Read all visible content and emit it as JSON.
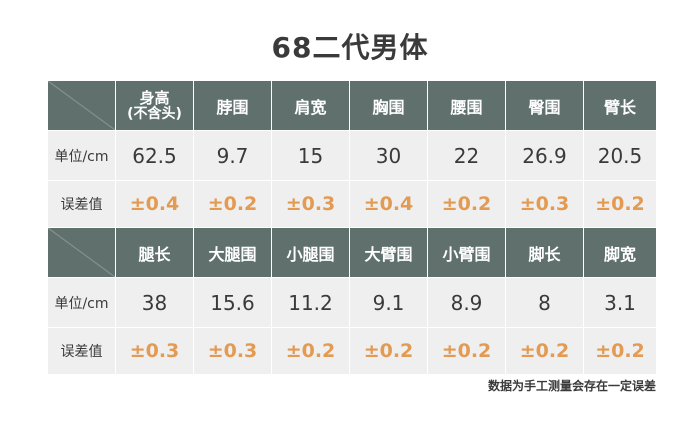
{
  "title": "68二代男体",
  "group1": {
    "headers": [
      "身高",
      "脖围",
      "肩宽",
      "胸围",
      "腰围",
      "臀围",
      "臂长"
    ],
    "height_sub": "(不含头)",
    "unit_label": "单位/cm",
    "values": [
      "62.5",
      "9.7",
      "15",
      "30",
      "22",
      "26.9",
      "20.5"
    ],
    "tol_label": "误差值",
    "tolerances": [
      "±0.4",
      "±0.2",
      "±0.3",
      "±0.4",
      "±0.2",
      "±0.3",
      "±0.2"
    ]
  },
  "group2": {
    "headers": [
      "腿长",
      "大腿围",
      "小腿围",
      "大臂围",
      "小臂围",
      "脚长",
      "脚宽"
    ],
    "unit_label": "单位/cm",
    "values": [
      "38",
      "15.6",
      "11.2",
      "9.1",
      "8.9",
      "8",
      "3.1"
    ],
    "tol_label": "误差值",
    "tolerances": [
      "±0.3",
      "±0.3",
      "±0.2",
      "±0.2",
      "±0.2",
      "±0.2",
      "±0.2"
    ]
  },
  "note": "数据为手工测量会存在一定误差",
  "colors": {
    "header_bg": "#5f706d",
    "cell_bg": "#efefef",
    "tolerance_text": "#e39a52"
  }
}
